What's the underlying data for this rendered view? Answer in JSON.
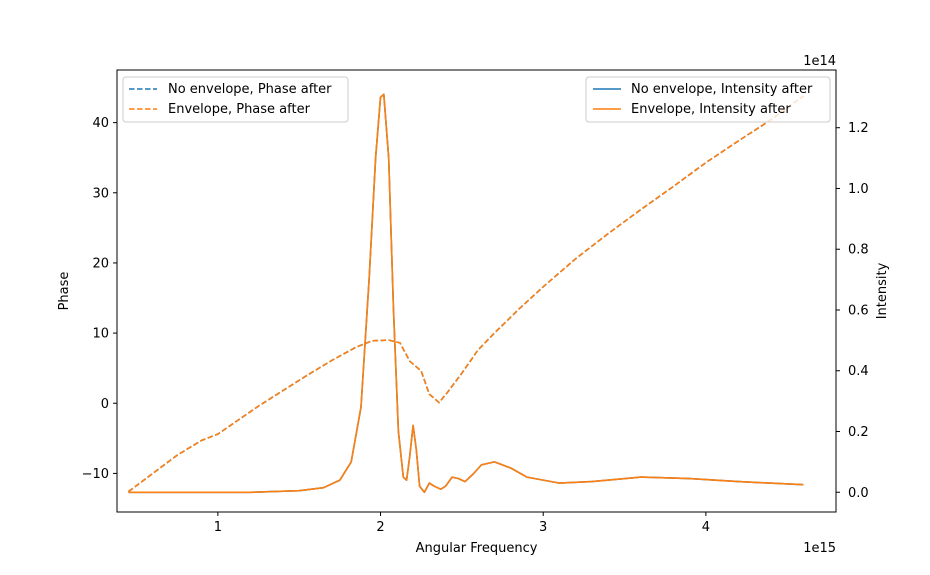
{
  "chart_data": {
    "type": "line",
    "xlabel": "Angular Frequency",
    "x_offset_label": "1e15",
    "y_left_label": "Phase",
    "y_right_label": "Intensity",
    "y_right_offset_label": "1e14",
    "xlim": [
      0.38,
      4.8
    ],
    "y_left_lim": [
      -15.5,
      47.5
    ],
    "y_right_lim": [
      -0.065,
      1.39
    ],
    "x_ticks": [
      1,
      2,
      3,
      4
    ],
    "y_left_ticks": [
      -10,
      0,
      10,
      20,
      30,
      40
    ],
    "y_right_ticks": [
      0.0,
      0.2,
      0.4,
      0.6,
      0.8,
      1.0,
      1.2
    ],
    "x_tick_labels": [
      "1",
      "2",
      "3",
      "4"
    ],
    "y_left_tick_labels": [
      "−10",
      "0",
      "10",
      "20",
      "30",
      "40"
    ],
    "y_right_tick_labels": [
      "0.0",
      "0.2",
      "0.4",
      "0.6",
      "0.8",
      "1.0",
      "1.2"
    ],
    "legend_left_position": "upper-left",
    "legend_right_position": "upper-right",
    "grid": false,
    "colors": {
      "blue": "#1f77b4",
      "orange": "#ff7f0e"
    },
    "series": [
      {
        "name": "No envelope, Phase after",
        "axis": "left",
        "style": "dashed",
        "color": "#1f77b4",
        "x": [
          0.45,
          0.6,
          0.75,
          0.9,
          1.0,
          1.1,
          1.25,
          1.4,
          1.55,
          1.7,
          1.85,
          1.95,
          2.05,
          2.12,
          2.18,
          2.25,
          2.3,
          2.36,
          2.42,
          2.5,
          2.6,
          2.7,
          2.85,
          3.0,
          3.2,
          3.4,
          3.6,
          3.8,
          4.0,
          4.2,
          4.4,
          4.6
        ],
        "y": [
          -12.6,
          -10.0,
          -7.4,
          -5.3,
          -4.4,
          -2.8,
          -0.4,
          1.8,
          4.0,
          6.1,
          8.0,
          8.9,
          9.0,
          8.6,
          6.0,
          4.6,
          1.3,
          0.1,
          1.8,
          4.3,
          7.6,
          10.0,
          13.4,
          16.6,
          20.6,
          24.2,
          27.6,
          30.9,
          34.3,
          37.4,
          40.4,
          43.8
        ]
      },
      {
        "name": "Envelope, Phase after",
        "axis": "left",
        "style": "dashed",
        "color": "#ff7f0e",
        "x": [
          0.45,
          0.6,
          0.75,
          0.9,
          1.0,
          1.1,
          1.25,
          1.4,
          1.55,
          1.7,
          1.85,
          1.95,
          2.05,
          2.12,
          2.18,
          2.25,
          2.3,
          2.36,
          2.42,
          2.5,
          2.6,
          2.7,
          2.85,
          3.0,
          3.2,
          3.4,
          3.6,
          3.8,
          4.0,
          4.2,
          4.4,
          4.6
        ],
        "y": [
          -12.6,
          -10.0,
          -7.4,
          -5.3,
          -4.4,
          -2.8,
          -0.4,
          1.8,
          4.0,
          6.1,
          8.0,
          8.9,
          9.0,
          8.6,
          6.0,
          4.6,
          1.3,
          0.1,
          1.8,
          4.3,
          7.6,
          10.0,
          13.4,
          16.6,
          20.6,
          24.2,
          27.6,
          30.9,
          34.3,
          37.4,
          40.4,
          43.8
        ]
      },
      {
        "name": "No envelope, Intensity after",
        "axis": "right",
        "style": "solid",
        "color": "#1f77b4",
        "x": [
          0.45,
          0.8,
          1.2,
          1.5,
          1.65,
          1.75,
          1.82,
          1.88,
          1.93,
          1.97,
          2.0,
          2.02,
          2.05,
          2.08,
          2.11,
          2.14,
          2.16,
          2.18,
          2.2,
          2.22,
          2.24,
          2.27,
          2.3,
          2.33,
          2.37,
          2.4,
          2.44,
          2.48,
          2.52,
          2.57,
          2.62,
          2.7,
          2.8,
          2.9,
          3.1,
          3.3,
          3.6,
          3.9,
          4.2,
          4.6
        ],
        "y": [
          0.0,
          0.0,
          0.0,
          0.005,
          0.015,
          0.04,
          0.1,
          0.28,
          0.7,
          1.1,
          1.3,
          1.31,
          1.1,
          0.6,
          0.2,
          0.05,
          0.04,
          0.12,
          0.22,
          0.14,
          0.02,
          0.0,
          0.03,
          0.02,
          0.01,
          0.02,
          0.05,
          0.045,
          0.035,
          0.06,
          0.09,
          0.1,
          0.08,
          0.05,
          0.03,
          0.035,
          0.05,
          0.045,
          0.035,
          0.025
        ]
      },
      {
        "name": "Envelope, Intensity after",
        "axis": "right",
        "style": "solid",
        "color": "#ff7f0e",
        "x": [
          0.45,
          0.8,
          1.2,
          1.5,
          1.65,
          1.75,
          1.82,
          1.88,
          1.93,
          1.97,
          2.0,
          2.02,
          2.05,
          2.08,
          2.11,
          2.14,
          2.16,
          2.18,
          2.2,
          2.22,
          2.24,
          2.27,
          2.3,
          2.33,
          2.37,
          2.4,
          2.44,
          2.48,
          2.52,
          2.57,
          2.62,
          2.7,
          2.8,
          2.9,
          3.1,
          3.3,
          3.6,
          3.9,
          4.2,
          4.6
        ],
        "y": [
          0.0,
          0.0,
          0.0,
          0.005,
          0.015,
          0.04,
          0.1,
          0.28,
          0.7,
          1.1,
          1.3,
          1.31,
          1.1,
          0.6,
          0.2,
          0.05,
          0.04,
          0.12,
          0.22,
          0.14,
          0.02,
          0.0,
          0.03,
          0.02,
          0.01,
          0.02,
          0.05,
          0.045,
          0.035,
          0.06,
          0.09,
          0.1,
          0.08,
          0.05,
          0.03,
          0.035,
          0.05,
          0.045,
          0.035,
          0.025
        ]
      }
    ]
  }
}
